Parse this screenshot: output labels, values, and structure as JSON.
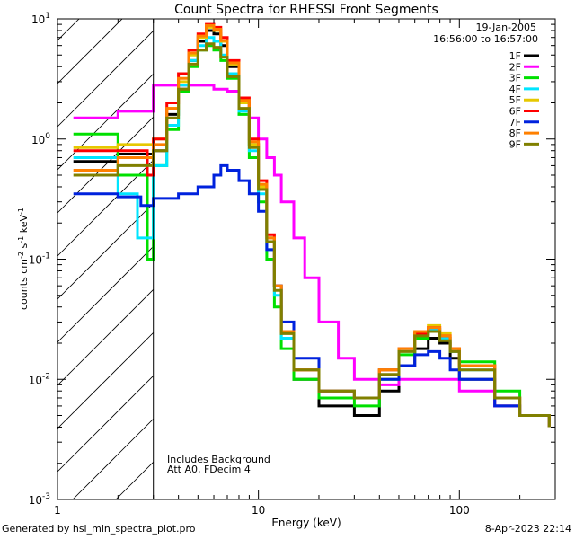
{
  "chart_data": {
    "type": "line",
    "title": "Count Spectra for RHESSI Front Segments",
    "xlabel": "Energy (keV)",
    "ylabel": "counts cm^-2 s^-1 keV^-1",
    "x_scale": "log",
    "y_scale": "log",
    "xlim": [
      1,
      300
    ],
    "ylim": [
      0.001,
      10
    ],
    "x_ticks": [
      {
        "value": 10,
        "label": "10"
      },
      {
        "value": 100,
        "label": "100"
      }
    ],
    "x_tick_label_one": "1",
    "y_ticks": [
      {
        "value": 10,
        "base": "10",
        "exp": "1"
      },
      {
        "value": 1,
        "base": "10",
        "exp": "0"
      },
      {
        "value": 0.1,
        "base": "10",
        "exp": "-1"
      },
      {
        "value": 0.01,
        "base": "10",
        "exp": "-2"
      },
      {
        "value": 0.001,
        "base": "10",
        "exp": "-3"
      }
    ],
    "attenuator_boundary_kev": 3,
    "date": "19-Jan-2005",
    "time_range": "16:56:00 to 16:57:00",
    "annotations": [
      "Includes Background",
      "Att A0, FDecim 4"
    ],
    "legend_position": "top-right",
    "series": [
      {
        "name": "1F",
        "color": "#000000",
        "points": [
          [
            1.2,
            0.65
          ],
          [
            2,
            0.75
          ],
          [
            3,
            0.8
          ],
          [
            3.5,
            1.6
          ],
          [
            4,
            2.6
          ],
          [
            4.5,
            4.5
          ],
          [
            5,
            6.5
          ],
          [
            5.5,
            8.0
          ],
          [
            6,
            7.5
          ],
          [
            6.5,
            6.0
          ],
          [
            7,
            4.0
          ],
          [
            8,
            2.0
          ],
          [
            9,
            0.9
          ],
          [
            10,
            0.4
          ],
          [
            11,
            0.15
          ],
          [
            12,
            0.06
          ],
          [
            13,
            0.025
          ],
          [
            15,
            0.01
          ],
          [
            20,
            0.006
          ],
          [
            30,
            0.005
          ],
          [
            40,
            0.008
          ],
          [
            50,
            0.013
          ],
          [
            60,
            0.018
          ],
          [
            70,
            0.022
          ],
          [
            80,
            0.02
          ],
          [
            90,
            0.015
          ],
          [
            100,
            0.01
          ],
          [
            150,
            0.006
          ],
          [
            200,
            0.005
          ],
          [
            280,
            0.004
          ]
        ]
      },
      {
        "name": "2F",
        "color": "#ff00ff",
        "points": [
          [
            1.2,
            1.5
          ],
          [
            2,
            1.7
          ],
          [
            2.7,
            1.7
          ],
          [
            3,
            2.8
          ],
          [
            4,
            2.8
          ],
          [
            5,
            2.8
          ],
          [
            6,
            2.6
          ],
          [
            7,
            2.5
          ],
          [
            8,
            2.0
          ],
          [
            9,
            1.5
          ],
          [
            10,
            1.0
          ],
          [
            11,
            0.7
          ],
          [
            12,
            0.5
          ],
          [
            13,
            0.3
          ],
          [
            15,
            0.15
          ],
          [
            17,
            0.07
          ],
          [
            20,
            0.03
          ],
          [
            25,
            0.015
          ],
          [
            30,
            0.01
          ],
          [
            40,
            0.009
          ],
          [
            50,
            0.01
          ],
          [
            60,
            0.01
          ],
          [
            80,
            0.01
          ],
          [
            100,
            0.008
          ],
          [
            150,
            0.006
          ],
          [
            200,
            0.005
          ],
          [
            280,
            0.004
          ]
        ]
      },
      {
        "name": "3F",
        "color": "#00e000",
        "points": [
          [
            1.2,
            1.1
          ],
          [
            2,
            0.5
          ],
          [
            2.8,
            0.1
          ],
          [
            3,
            0.6
          ],
          [
            3.5,
            1.2
          ],
          [
            4,
            2.5
          ],
          [
            4.5,
            4.0
          ],
          [
            5,
            5.5
          ],
          [
            5.5,
            6.0
          ],
          [
            6,
            5.5
          ],
          [
            6.5,
            4.5
          ],
          [
            7,
            3.2
          ],
          [
            8,
            1.6
          ],
          [
            9,
            0.7
          ],
          [
            10,
            0.3
          ],
          [
            11,
            0.1
          ],
          [
            12,
            0.04
          ],
          [
            13,
            0.018
          ],
          [
            15,
            0.01
          ],
          [
            20,
            0.007
          ],
          [
            30,
            0.006
          ],
          [
            40,
            0.01
          ],
          [
            50,
            0.016
          ],
          [
            60,
            0.022
          ],
          [
            70,
            0.026
          ],
          [
            80,
            0.022
          ],
          [
            90,
            0.018
          ],
          [
            100,
            0.014
          ],
          [
            150,
            0.008
          ],
          [
            200,
            0.005
          ],
          [
            280,
            0.004
          ]
        ]
      },
      {
        "name": "4F",
        "color": "#00e5ff",
        "points": [
          [
            1.2,
            0.7
          ],
          [
            2,
            0.35
          ],
          [
            2.5,
            0.15
          ],
          [
            3,
            0.6
          ],
          [
            3.5,
            1.3
          ],
          [
            4,
            2.8
          ],
          [
            4.5,
            4.5
          ],
          [
            5,
            6.0
          ],
          [
            5.5,
            7.0
          ],
          [
            6,
            6.5
          ],
          [
            6.5,
            5.0
          ],
          [
            7,
            3.5
          ],
          [
            8,
            1.7
          ],
          [
            9,
            0.8
          ],
          [
            10,
            0.35
          ],
          [
            11,
            0.12
          ],
          [
            12,
            0.05
          ],
          [
            13,
            0.022
          ],
          [
            15,
            0.012
          ],
          [
            20,
            0.008
          ],
          [
            30,
            0.007
          ],
          [
            40,
            0.012
          ],
          [
            50,
            0.018
          ],
          [
            60,
            0.024
          ],
          [
            70,
            0.026
          ],
          [
            80,
            0.022
          ],
          [
            90,
            0.017
          ],
          [
            100,
            0.012
          ],
          [
            150,
            0.007
          ],
          [
            200,
            0.005
          ],
          [
            280,
            0.004
          ]
        ]
      },
      {
        "name": "5F",
        "color": "#e6c800",
        "points": [
          [
            1.2,
            0.85
          ],
          [
            2,
            0.9
          ],
          [
            3,
            1.0
          ],
          [
            3.5,
            1.8
          ],
          [
            4,
            3.0
          ],
          [
            4.5,
            5.0
          ],
          [
            5,
            7.0
          ],
          [
            5.5,
            8.5
          ],
          [
            6,
            8.0
          ],
          [
            6.5,
            6.5
          ],
          [
            7,
            4.2
          ],
          [
            8,
            2.0
          ],
          [
            9,
            0.9
          ],
          [
            10,
            0.4
          ],
          [
            11,
            0.15
          ],
          [
            12,
            0.06
          ],
          [
            13,
            0.025
          ],
          [
            15,
            0.012
          ],
          [
            20,
            0.008
          ],
          [
            30,
            0.007
          ],
          [
            40,
            0.012
          ],
          [
            50,
            0.018
          ],
          [
            60,
            0.025
          ],
          [
            70,
            0.028
          ],
          [
            80,
            0.024
          ],
          [
            90,
            0.018
          ],
          [
            100,
            0.013
          ],
          [
            150,
            0.007
          ],
          [
            200,
            0.005
          ],
          [
            280,
            0.004
          ]
        ]
      },
      {
        "name": "6F",
        "color": "#ff0000",
        "points": [
          [
            1.2,
            0.8
          ],
          [
            2,
            0.8
          ],
          [
            2.8,
            0.5
          ],
          [
            3,
            1.0
          ],
          [
            3.5,
            2.0
          ],
          [
            4,
            3.5
          ],
          [
            4.5,
            5.5
          ],
          [
            5,
            7.5
          ],
          [
            5.5,
            9.0
          ],
          [
            6,
            8.5
          ],
          [
            6.5,
            7.0
          ],
          [
            7,
            4.5
          ],
          [
            8,
            2.2
          ],
          [
            9,
            1.0
          ],
          [
            10,
            0.45
          ],
          [
            11,
            0.16
          ],
          [
            12,
            0.06
          ],
          [
            13,
            0.025
          ],
          [
            15,
            0.012
          ],
          [
            20,
            0.008
          ],
          [
            30,
            0.007
          ],
          [
            40,
            0.012
          ],
          [
            50,
            0.018
          ],
          [
            60,
            0.024
          ],
          [
            70,
            0.027
          ],
          [
            80,
            0.023
          ],
          [
            90,
            0.018
          ],
          [
            100,
            0.013
          ],
          [
            150,
            0.007
          ],
          [
            200,
            0.005
          ],
          [
            280,
            0.004
          ]
        ]
      },
      {
        "name": "7F",
        "color": "#0022dd",
        "points": [
          [
            1.2,
            0.35
          ],
          [
            2,
            0.33
          ],
          [
            2.6,
            0.28
          ],
          [
            3,
            0.32
          ],
          [
            4,
            0.35
          ],
          [
            5,
            0.4
          ],
          [
            6,
            0.5
          ],
          [
            6.5,
            0.6
          ],
          [
            7,
            0.55
          ],
          [
            8,
            0.45
          ],
          [
            9,
            0.35
          ],
          [
            10,
            0.25
          ],
          [
            11,
            0.12
          ],
          [
            12,
            0.06
          ],
          [
            13,
            0.03
          ],
          [
            15,
            0.015
          ],
          [
            20,
            0.008
          ],
          [
            30,
            0.007
          ],
          [
            40,
            0.01
          ],
          [
            50,
            0.013
          ],
          [
            60,
            0.016
          ],
          [
            70,
            0.017
          ],
          [
            80,
            0.015
          ],
          [
            90,
            0.012
          ],
          [
            100,
            0.01
          ],
          [
            150,
            0.006
          ],
          [
            200,
            0.005
          ],
          [
            280,
            0.004
          ]
        ]
      },
      {
        "name": "8F",
        "color": "#ff8000",
        "points": [
          [
            1.2,
            0.55
          ],
          [
            2,
            0.7
          ],
          [
            3,
            0.9
          ],
          [
            3.5,
            1.8
          ],
          [
            4,
            3.2
          ],
          [
            4.5,
            5.2
          ],
          [
            5,
            7.2
          ],
          [
            5.5,
            8.8
          ],
          [
            6,
            8.2
          ],
          [
            6.5,
            6.6
          ],
          [
            7,
            4.3
          ],
          [
            8,
            2.1
          ],
          [
            9,
            0.95
          ],
          [
            10,
            0.42
          ],
          [
            11,
            0.15
          ],
          [
            12,
            0.06
          ],
          [
            13,
            0.025
          ],
          [
            15,
            0.012
          ],
          [
            20,
            0.008
          ],
          [
            30,
            0.007
          ],
          [
            40,
            0.012
          ],
          [
            50,
            0.018
          ],
          [
            60,
            0.025
          ],
          [
            70,
            0.027
          ],
          [
            80,
            0.023
          ],
          [
            90,
            0.018
          ],
          [
            100,
            0.013
          ],
          [
            150,
            0.007
          ],
          [
            200,
            0.005
          ],
          [
            280,
            0.004
          ]
        ]
      },
      {
        "name": "9F",
        "color": "#808000",
        "points": [
          [
            1.2,
            0.5
          ],
          [
            2,
            0.6
          ],
          [
            3,
            0.8
          ],
          [
            3.5,
            1.5
          ],
          [
            4,
            2.6
          ],
          [
            4.5,
            4.2
          ],
          [
            5,
            5.5
          ],
          [
            5.5,
            6.2
          ],
          [
            6,
            5.8
          ],
          [
            6.5,
            4.8
          ],
          [
            7,
            3.3
          ],
          [
            8,
            1.8
          ],
          [
            9,
            0.85
          ],
          [
            10,
            0.38
          ],
          [
            11,
            0.14
          ],
          [
            12,
            0.055
          ],
          [
            13,
            0.024
          ],
          [
            15,
            0.012
          ],
          [
            20,
            0.008
          ],
          [
            30,
            0.007
          ],
          [
            40,
            0.011
          ],
          [
            50,
            0.017
          ],
          [
            60,
            0.023
          ],
          [
            70,
            0.025
          ],
          [
            80,
            0.021
          ],
          [
            90,
            0.017
          ],
          [
            100,
            0.012
          ],
          [
            150,
            0.007
          ],
          [
            200,
            0.005
          ],
          [
            280,
            0.004
          ]
        ]
      }
    ]
  },
  "footer": {
    "generated_by": "Generated by hsi_min_spectra_plot.pro",
    "timestamp": "8-Apr-2023 22:14"
  }
}
